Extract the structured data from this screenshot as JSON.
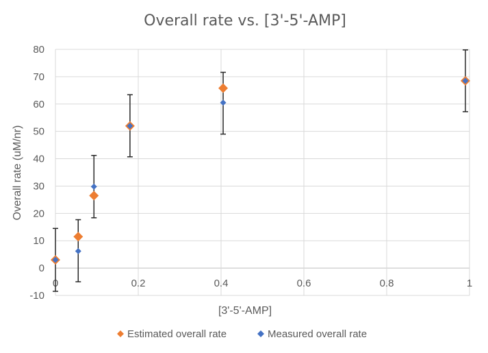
{
  "chart_data": {
    "type": "scatter",
    "title": "Overall rate vs. [3'-5'-AMP]",
    "xlabel": "[3'-5'-AMP]",
    "ylabel": "Overall rate (uM/nr)",
    "xlim": [
      0,
      1
    ],
    "ylim": [
      -10,
      80
    ],
    "x_ticks": [
      0,
      0.2,
      0.4,
      0.6,
      0.8,
      1
    ],
    "x_tick_labels": [
      "0",
      "0.2",
      "0.4",
      "0.6",
      "0.8",
      "1"
    ],
    "y_ticks": [
      -10,
      0,
      10,
      20,
      30,
      40,
      50,
      60,
      70,
      80
    ],
    "y_tick_labels": [
      "-10",
      "0",
      "10",
      "20",
      "30",
      "40",
      "50",
      "60",
      "70",
      "80"
    ],
    "grid": true,
    "legend_position": "bottom",
    "series": [
      {
        "name": "Estimated overall rate",
        "color": "#ED7D31",
        "marker": "diamond",
        "points": [
          {
            "x": 0,
            "y": 3
          },
          {
            "x": 0.055,
            "y": 11.5
          },
          {
            "x": 0.093,
            "y": 26.5
          },
          {
            "x": 0.18,
            "y": 52
          },
          {
            "x": 0.405,
            "y": 65.8
          },
          {
            "x": 0.99,
            "y": 68.5
          }
        ]
      },
      {
        "name": "Measured overall rate",
        "color": "#4472C4",
        "marker": "diamond",
        "points": [
          {
            "x": 0,
            "y": 3,
            "err_low": -8.5,
            "err_high": 14.5
          },
          {
            "x": 0.055,
            "y": 6.2,
            "err_low": -5,
            "err_high": 17.7
          },
          {
            "x": 0.093,
            "y": 29.8,
            "err_low": 18.4,
            "err_high": 41.2
          },
          {
            "x": 0.18,
            "y": 52,
            "err_low": 40.7,
            "err_high": 63.4
          },
          {
            "x": 0.405,
            "y": 60.5,
            "err_low": 49,
            "err_high": 71.6
          },
          {
            "x": 0.99,
            "y": 68.5,
            "err_low": 57.2,
            "err_high": 79.8
          }
        ]
      }
    ]
  }
}
